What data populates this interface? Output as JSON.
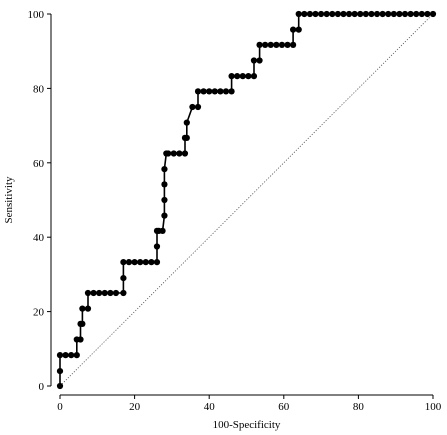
{
  "chart_data": {
    "type": "line",
    "title": "",
    "xlabel": "100-Specificity",
    "ylabel": "Sensitivity",
    "xlim": [
      0,
      100
    ],
    "ylim": [
      0,
      100
    ],
    "xticks": [
      0,
      20,
      40,
      60,
      80,
      100
    ],
    "yticks": [
      0,
      20,
      40,
      60,
      80,
      100
    ],
    "grid": false,
    "reference_line": {
      "x": [
        0,
        100
      ],
      "y": [
        0,
        100
      ],
      "style": "dotted"
    },
    "series": [
      {
        "x": [
          0,
          0,
          0,
          1.5,
          3,
          4.5,
          4.5,
          5.5,
          5.5,
          6,
          6,
          7.5,
          7.5,
          9,
          10.5,
          12,
          13.5,
          15,
          17,
          17,
          17,
          18.5,
          20,
          21.5,
          23,
          24.5,
          26,
          26,
          26,
          26.5,
          27.5,
          28,
          28,
          28,
          28,
          28.5,
          29,
          30.5,
          32,
          33.5,
          33.5,
          34,
          34,
          35.5,
          37,
          37,
          38.5,
          40,
          41.5,
          43,
          44.5,
          46,
          46,
          47.5,
          49,
          50.5,
          52,
          52,
          53.5,
          53.5,
          55,
          56.5,
          58,
          59.5,
          61,
          62.5,
          62.5,
          64,
          64,
          65.5,
          67,
          68.5,
          70,
          71.5,
          73,
          74.5,
          76,
          77.5,
          79,
          80.5,
          82,
          83.5,
          85,
          86.5,
          88,
          89.5,
          91,
          92.5,
          94,
          95.5,
          97,
          98.5,
          100
        ],
        "y": [
          0,
          4,
          8.3,
          8.3,
          8.3,
          8.3,
          12.5,
          12.5,
          16.7,
          16.7,
          20.8,
          20.8,
          25,
          25,
          25,
          25,
          25,
          25,
          25,
          29,
          33.3,
          33.3,
          33.3,
          33.3,
          33.3,
          33.3,
          33.3,
          37.5,
          41.7,
          41.7,
          41.7,
          45.8,
          50,
          54.2,
          58.3,
          62.5,
          62.5,
          62.5,
          62.5,
          62.5,
          66.7,
          66.7,
          70.8,
          75,
          75,
          79.2,
          79.2,
          79.2,
          79.2,
          79.2,
          79.2,
          79.2,
          83.3,
          83.3,
          83.3,
          83.3,
          83.3,
          87.5,
          87.5,
          91.7,
          91.7,
          91.7,
          91.7,
          91.7,
          91.7,
          91.7,
          95.8,
          95.8,
          100,
          100,
          100,
          100,
          100,
          100,
          100,
          100,
          100,
          100,
          100,
          100,
          100,
          100,
          100,
          100,
          100,
          100,
          100,
          100,
          100,
          100,
          100,
          100,
          100
        ]
      }
    ]
  }
}
